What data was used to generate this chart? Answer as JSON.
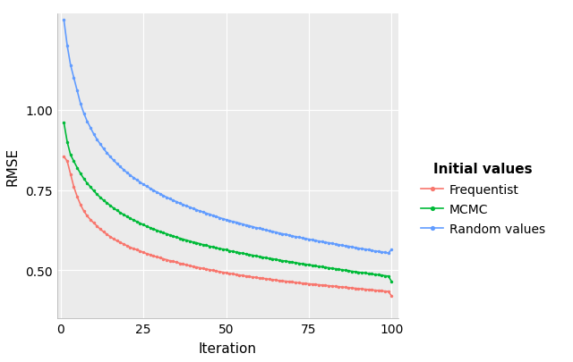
{
  "title": "",
  "xlabel": "Iteration",
  "ylabel": "RMSE",
  "legend_title": "Initial values",
  "xlim": [
    -1,
    102
  ],
  "ylim": [
    0.35,
    1.3
  ],
  "xticks": [
    0,
    25,
    50,
    75,
    100
  ],
  "yticks": [
    0.5,
    0.75,
    1.0
  ],
  "background_color": "#EBEBEB",
  "grid_color": "#FFFFFF",
  "series": {
    "Frequentist": {
      "color": "#F8766D",
      "x": [
        1,
        2,
        3,
        4,
        5,
        6,
        7,
        8,
        9,
        10,
        11,
        12,
        13,
        14,
        15,
        16,
        17,
        18,
        19,
        20,
        21,
        22,
        23,
        24,
        25,
        26,
        27,
        28,
        29,
        30,
        31,
        32,
        33,
        34,
        35,
        36,
        37,
        38,
        39,
        40,
        41,
        42,
        43,
        44,
        45,
        46,
        47,
        48,
        49,
        50,
        51,
        52,
        53,
        54,
        55,
        56,
        57,
        58,
        59,
        60,
        61,
        62,
        63,
        64,
        65,
        66,
        67,
        68,
        69,
        70,
        71,
        72,
        73,
        74,
        75,
        76,
        77,
        78,
        79,
        80,
        81,
        82,
        83,
        84,
        85,
        86,
        87,
        88,
        89,
        90,
        91,
        92,
        93,
        94,
        95,
        96,
        97,
        98,
        99,
        100
      ],
      "y": [
        0.855,
        0.84,
        0.8,
        0.76,
        0.73,
        0.705,
        0.685,
        0.67,
        0.658,
        0.648,
        0.638,
        0.628,
        0.62,
        0.612,
        0.605,
        0.598,
        0.592,
        0.587,
        0.582,
        0.577,
        0.572,
        0.568,
        0.564,
        0.56,
        0.556,
        0.552,
        0.549,
        0.545,
        0.542,
        0.539,
        0.536,
        0.533,
        0.53,
        0.528,
        0.525,
        0.522,
        0.52,
        0.517,
        0.515,
        0.512,
        0.51,
        0.508,
        0.506,
        0.504,
        0.502,
        0.5,
        0.498,
        0.496,
        0.494,
        0.492,
        0.49,
        0.489,
        0.487,
        0.485,
        0.484,
        0.482,
        0.481,
        0.479,
        0.478,
        0.476,
        0.475,
        0.474,
        0.472,
        0.471,
        0.47,
        0.468,
        0.467,
        0.466,
        0.465,
        0.464,
        0.462,
        0.461,
        0.46,
        0.459,
        0.458,
        0.457,
        0.456,
        0.455,
        0.454,
        0.453,
        0.452,
        0.451,
        0.45,
        0.449,
        0.448,
        0.447,
        0.446,
        0.445,
        0.444,
        0.443,
        0.442,
        0.441,
        0.44,
        0.439,
        0.438,
        0.437,
        0.436,
        0.435,
        0.434,
        0.42
      ]
    },
    "MCMC": {
      "color": "#00BA38",
      "x": [
        1,
        2,
        3,
        4,
        5,
        6,
        7,
        8,
        9,
        10,
        11,
        12,
        13,
        14,
        15,
        16,
        17,
        18,
        19,
        20,
        21,
        22,
        23,
        24,
        25,
        26,
        27,
        28,
        29,
        30,
        31,
        32,
        33,
        34,
        35,
        36,
        37,
        38,
        39,
        40,
        41,
        42,
        43,
        44,
        45,
        46,
        47,
        48,
        49,
        50,
        51,
        52,
        53,
        54,
        55,
        56,
        57,
        58,
        59,
        60,
        61,
        62,
        63,
        64,
        65,
        66,
        67,
        68,
        69,
        70,
        71,
        72,
        73,
        74,
        75,
        76,
        77,
        78,
        79,
        80,
        81,
        82,
        83,
        84,
        85,
        86,
        87,
        88,
        89,
        90,
        91,
        92,
        93,
        94,
        95,
        96,
        97,
        98,
        99,
        100
      ],
      "y": [
        0.96,
        0.9,
        0.86,
        0.84,
        0.82,
        0.802,
        0.786,
        0.772,
        0.76,
        0.748,
        0.737,
        0.727,
        0.718,
        0.71,
        0.702,
        0.694,
        0.687,
        0.68,
        0.674,
        0.668,
        0.662,
        0.657,
        0.652,
        0.647,
        0.642,
        0.637,
        0.633,
        0.629,
        0.625,
        0.621,
        0.617,
        0.614,
        0.61,
        0.607,
        0.603,
        0.6,
        0.597,
        0.594,
        0.591,
        0.588,
        0.586,
        0.583,
        0.58,
        0.578,
        0.575,
        0.573,
        0.57,
        0.568,
        0.566,
        0.564,
        0.561,
        0.559,
        0.557,
        0.555,
        0.553,
        0.551,
        0.549,
        0.547,
        0.545,
        0.543,
        0.541,
        0.539,
        0.537,
        0.536,
        0.534,
        0.532,
        0.53,
        0.529,
        0.527,
        0.525,
        0.524,
        0.522,
        0.52,
        0.519,
        0.517,
        0.516,
        0.514,
        0.512,
        0.511,
        0.509,
        0.508,
        0.506,
        0.505,
        0.503,
        0.502,
        0.5,
        0.499,
        0.497,
        0.496,
        0.494,
        0.493,
        0.492,
        0.49,
        0.489,
        0.487,
        0.486,
        0.485,
        0.483,
        0.482,
        0.465
      ]
    },
    "Random values": {
      "color": "#619CFF",
      "x": [
        1,
        2,
        3,
        4,
        5,
        6,
        7,
        8,
        9,
        10,
        11,
        12,
        13,
        14,
        15,
        16,
        17,
        18,
        19,
        20,
        21,
        22,
        23,
        24,
        25,
        26,
        27,
        28,
        29,
        30,
        31,
        32,
        33,
        34,
        35,
        36,
        37,
        38,
        39,
        40,
        41,
        42,
        43,
        44,
        45,
        46,
        47,
        48,
        49,
        50,
        51,
        52,
        53,
        54,
        55,
        56,
        57,
        58,
        59,
        60,
        61,
        62,
        63,
        64,
        65,
        66,
        67,
        68,
        69,
        70,
        71,
        72,
        73,
        74,
        75,
        76,
        77,
        78,
        79,
        80,
        81,
        82,
        83,
        84,
        85,
        86,
        87,
        88,
        89,
        90,
        91,
        92,
        93,
        94,
        95,
        96,
        97,
        98,
        99,
        100
      ],
      "y": [
        1.28,
        1.2,
        1.14,
        1.1,
        1.06,
        1.02,
        0.99,
        0.965,
        0.945,
        0.925,
        0.908,
        0.893,
        0.879,
        0.866,
        0.854,
        0.843,
        0.833,
        0.823,
        0.814,
        0.805,
        0.797,
        0.789,
        0.782,
        0.775,
        0.768,
        0.762,
        0.756,
        0.75,
        0.744,
        0.739,
        0.733,
        0.728,
        0.723,
        0.718,
        0.714,
        0.709,
        0.705,
        0.701,
        0.697,
        0.693,
        0.689,
        0.685,
        0.682,
        0.678,
        0.675,
        0.671,
        0.668,
        0.664,
        0.661,
        0.658,
        0.655,
        0.652,
        0.65,
        0.647,
        0.644,
        0.641,
        0.639,
        0.636,
        0.633,
        0.631,
        0.628,
        0.626,
        0.623,
        0.621,
        0.619,
        0.616,
        0.614,
        0.612,
        0.61,
        0.607,
        0.605,
        0.603,
        0.601,
        0.599,
        0.597,
        0.595,
        0.593,
        0.591,
        0.589,
        0.587,
        0.586,
        0.584,
        0.582,
        0.58,
        0.578,
        0.576,
        0.575,
        0.573,
        0.571,
        0.569,
        0.567,
        0.566,
        0.564,
        0.562,
        0.56,
        0.559,
        0.557,
        0.556,
        0.554,
        0.565
      ]
    }
  }
}
